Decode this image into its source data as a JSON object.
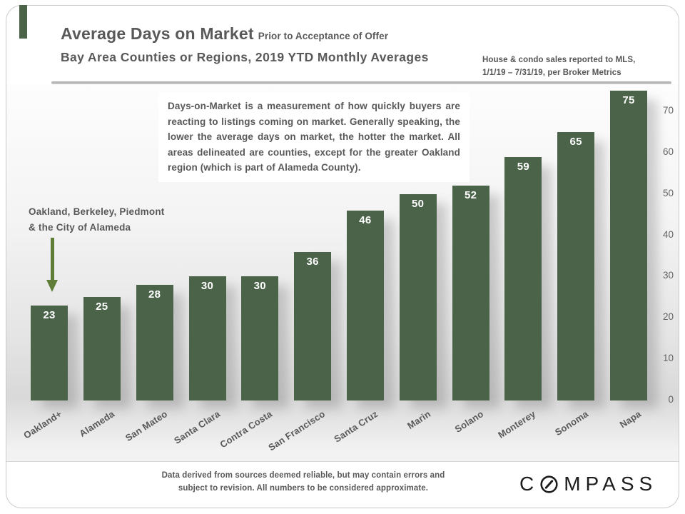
{
  "slide": {
    "title_main": "Average Days on Market",
    "title_suffix": "Prior to Acceptance of Offer",
    "title_line2": "Bay Area Counties or Regions, 2019 YTD Monthly Averages",
    "source_note_line1": "House & condo sales reported to MLS,",
    "source_note_line2": "1/1/19 – 7/31/19, per Broker Metrics",
    "description": "Days-on-Market is a measurement of how quickly buyers are reacting to listings coming on market. Generally speaking, the lower the average days on market, the hotter the market. All areas delineated are counties, except for the greater Oakland region (which is part of Alameda County).",
    "annotation_line1": "Oakland, Berkeley, Piedmont",
    "annotation_line2": "& the City of Alameda",
    "footer_line1": "Data derived from sources deemed reliable, but may contain errors and",
    "footer_line2": "subject to revision. All numbers to be considered approximate.",
    "logo": {
      "first": "C",
      "rest": "MPASS",
      "full": "COMPASS"
    }
  },
  "chart_data": {
    "type": "bar",
    "title": "Average Days on Market Prior to Acceptance of Offer",
    "subtitle": "Bay Area Counties or Regions, 2019 YTD Monthly Averages",
    "categories": [
      "Oakland+",
      "Alameda",
      "San Mateo",
      "Santa Clara",
      "Contra Costa",
      "San Francisco",
      "Santa Cruz",
      "Marin",
      "Solano",
      "Monterey",
      "Sonoma",
      "Napa"
    ],
    "values": [
      23,
      25,
      28,
      30,
      30,
      36,
      46,
      50,
      52,
      59,
      65,
      75
    ],
    "xlabel": "",
    "ylabel": "",
    "ylim": [
      0,
      75
    ],
    "yticks": [
      0,
      10,
      20,
      30,
      40,
      50,
      60,
      70
    ],
    "axis_side": "right",
    "grid": false,
    "legend": "none",
    "bar_color": "#4a6349",
    "value_label_color": "#ffffff"
  },
  "colors": {
    "bar_green": "#4a6349",
    "arrow_green": "#5f7d37",
    "text_gray": "#595959",
    "logo_black": "#1d1d1d"
  }
}
